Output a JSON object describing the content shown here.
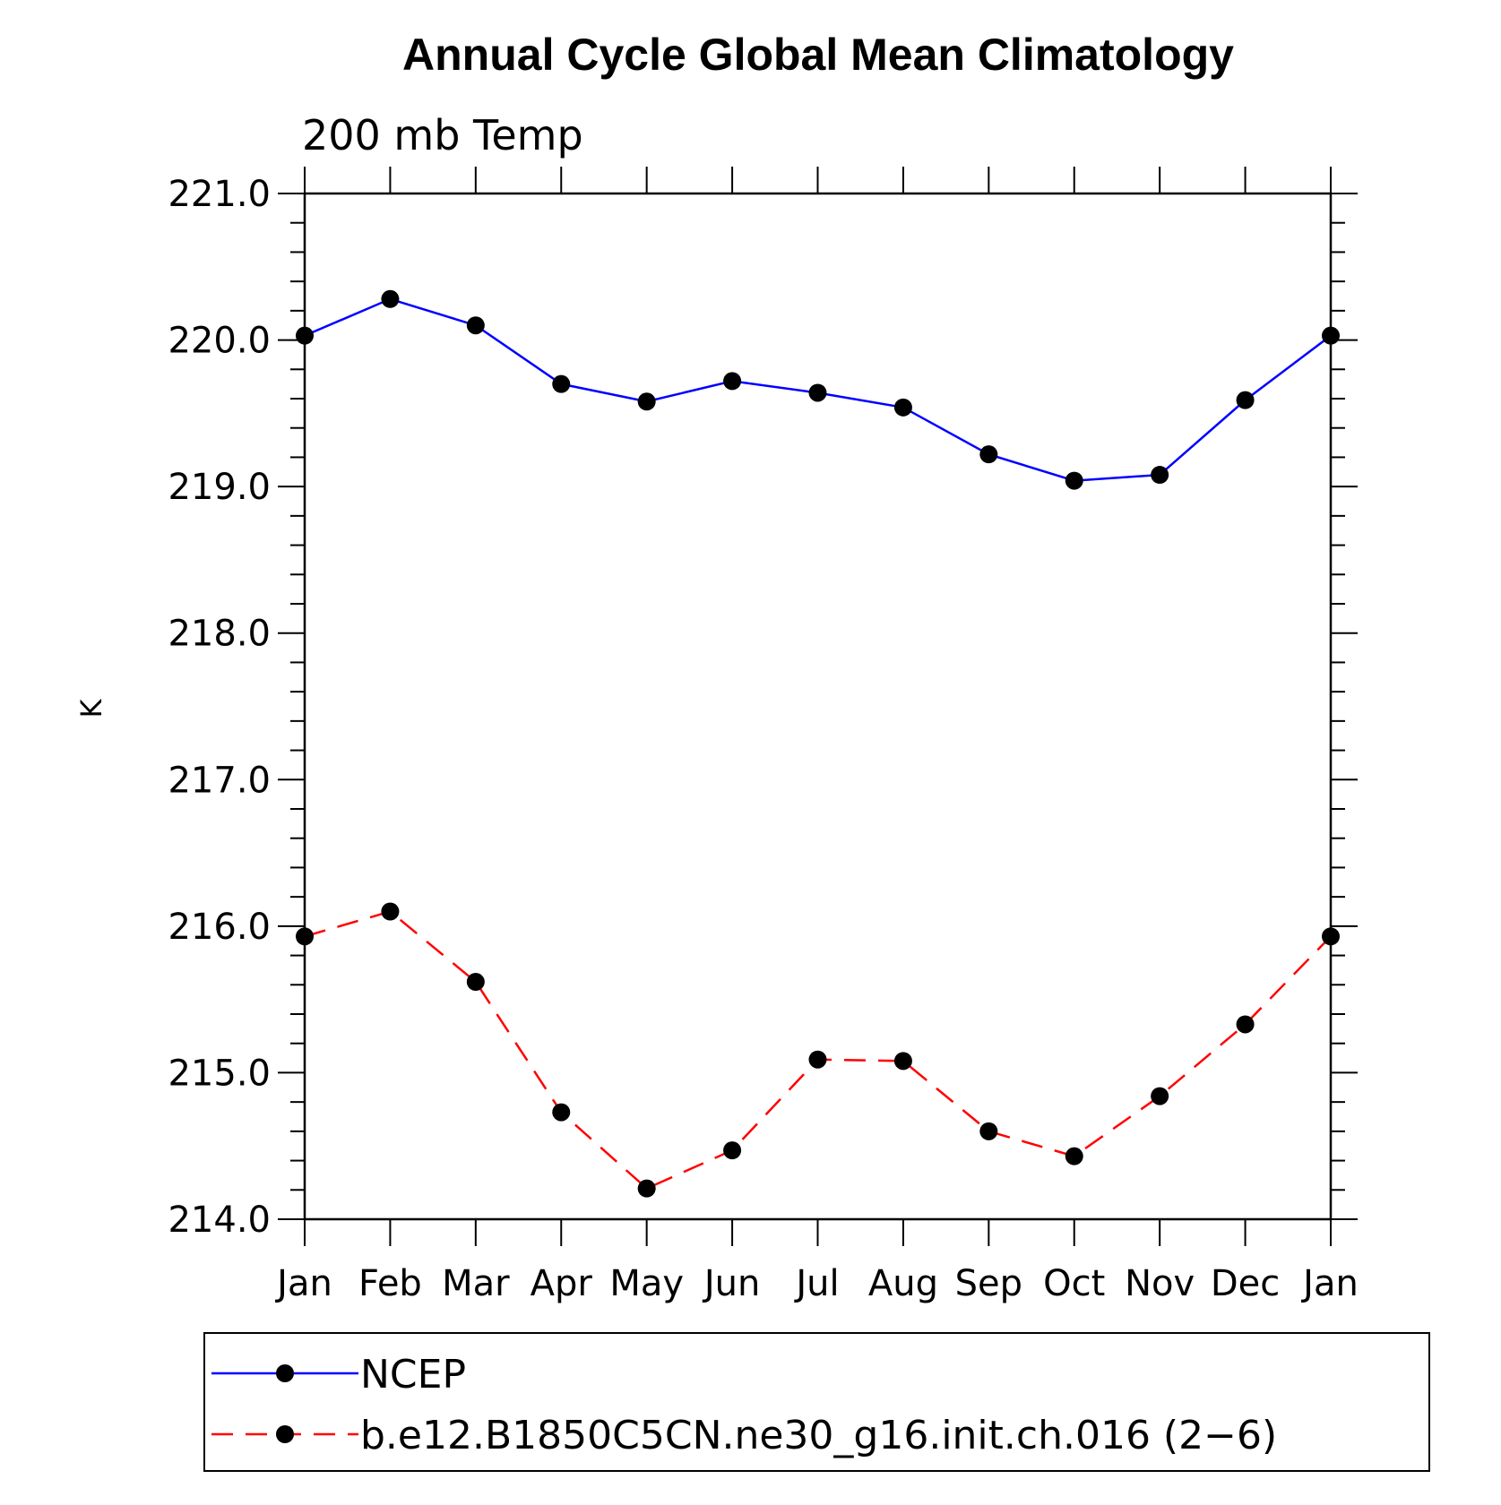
{
  "chart_data": {
    "type": "line",
    "title": "Annual Cycle Global Mean Climatology",
    "subtitle": "200 mb Temp",
    "ylabel": "K",
    "xlabel": "",
    "categories": [
      "Jan",
      "Feb",
      "Mar",
      "Apr",
      "May",
      "Jun",
      "Jul",
      "Aug",
      "Sep",
      "Oct",
      "Nov",
      "Dec",
      "Jan"
    ],
    "ylim": [
      214.0,
      221.0
    ],
    "yticks": [
      "214.0",
      "215.0",
      "216.0",
      "217.0",
      "218.0",
      "219.0",
      "220.0",
      "221.0"
    ],
    "grid": false,
    "legend_position": "bottom",
    "series": [
      {
        "name": "NCEP",
        "color": "#0000ff",
        "line_style": "solid",
        "marker": "filled-circle",
        "values": [
          220.03,
          220.28,
          220.1,
          219.7,
          219.58,
          219.72,
          219.64,
          219.54,
          219.22,
          219.04,
          219.08,
          219.59,
          220.03
        ]
      },
      {
        "name": "b.e12.B1850C5CN.ne30_g16.init.ch.016 (2−6)",
        "color": "#ff0000",
        "line_style": "dashed",
        "marker": "filled-circle",
        "values": [
          215.93,
          216.1,
          215.62,
          214.73,
          214.21,
          214.47,
          215.09,
          215.08,
          214.6,
          214.43,
          214.84,
          215.33,
          215.93
        ]
      }
    ]
  }
}
